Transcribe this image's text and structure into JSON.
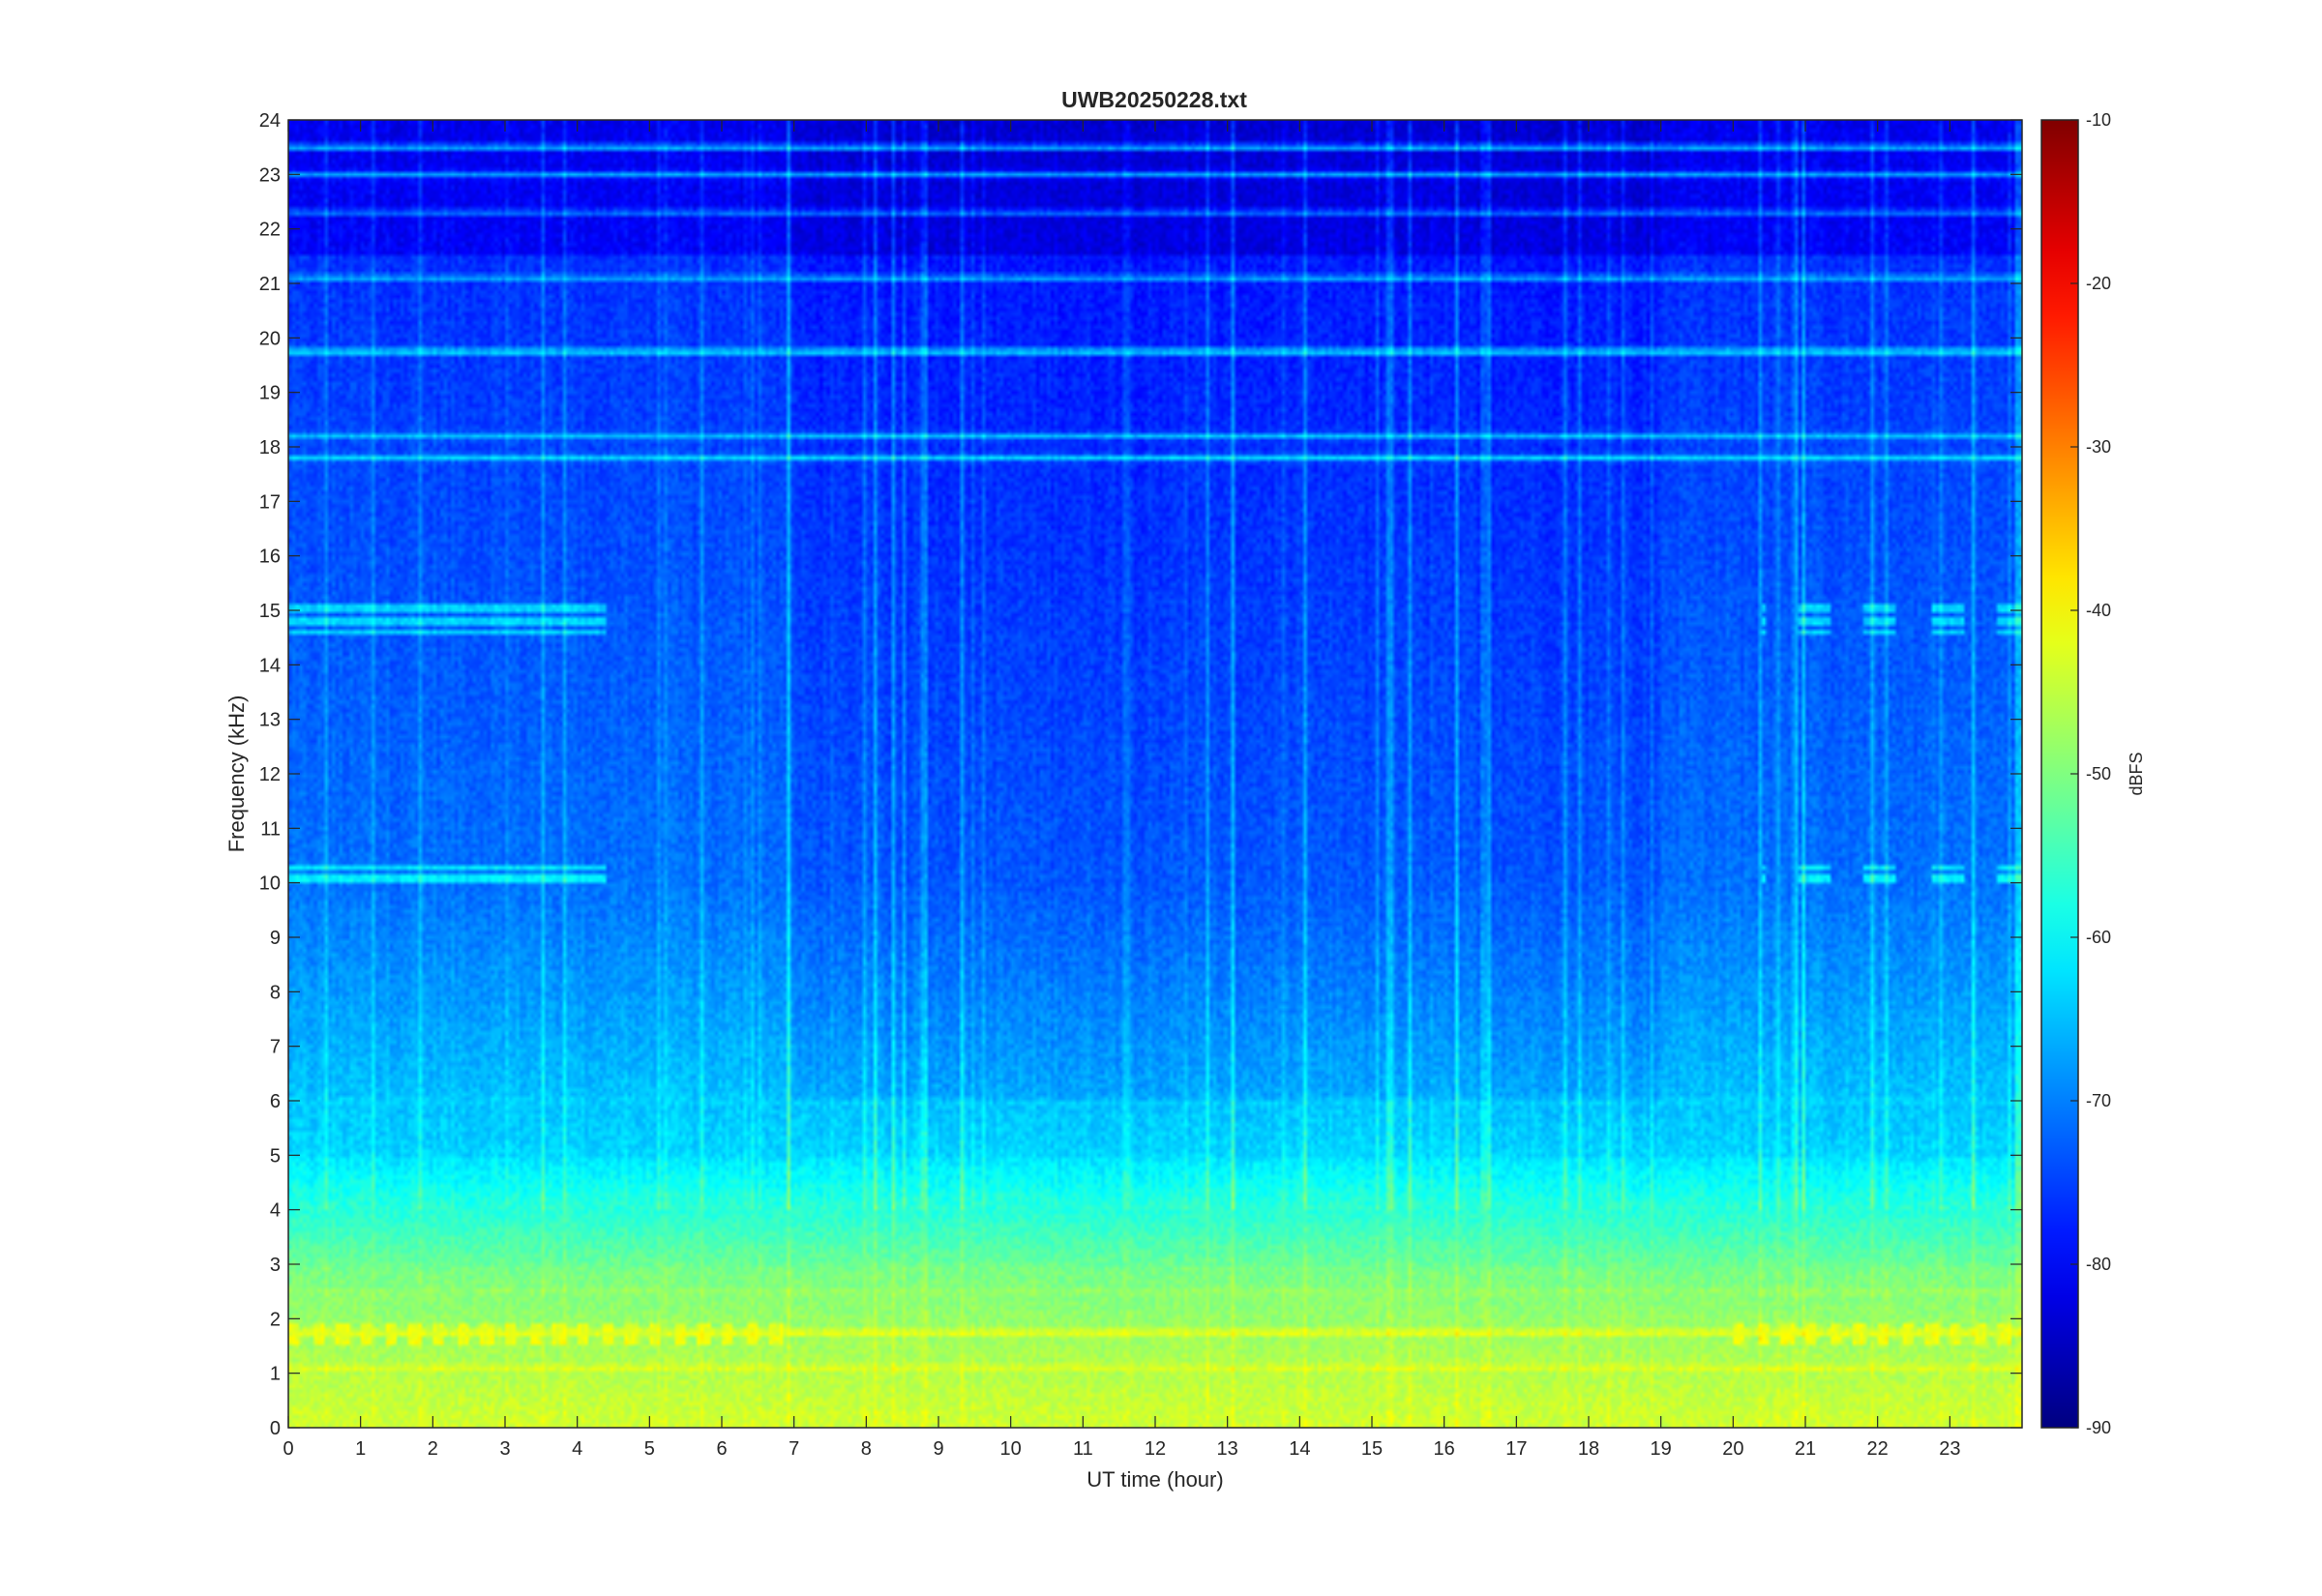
{
  "chart_data": {
    "type": "heatmap",
    "title": "UWB20250228.txt",
    "xlabel": "UT time (hour)",
    "ylabel": "Frequency (kHz)",
    "xlim": [
      0,
      24
    ],
    "ylim": [
      0,
      24
    ],
    "x_ticks": [
      "0",
      "1",
      "2",
      "3",
      "4",
      "5",
      "6",
      "7",
      "8",
      "9",
      "10",
      "11",
      "12",
      "13",
      "14",
      "15",
      "16",
      "17",
      "18",
      "19",
      "20",
      "21",
      "22",
      "23"
    ],
    "y_ticks": [
      "0",
      "1",
      "2",
      "3",
      "4",
      "5",
      "6",
      "7",
      "8",
      "9",
      "10",
      "11",
      "12",
      "13",
      "14",
      "15",
      "16",
      "17",
      "18",
      "19",
      "20",
      "21",
      "22",
      "23",
      "24"
    ],
    "colorbar": {
      "label": "dBFS",
      "range": [
        -90,
        -10
      ],
      "ticks": [
        "-10",
        "-20",
        "-30",
        "-40",
        "-50",
        "-60",
        "-70",
        "-80",
        "-90"
      ],
      "colormap": "jet"
    },
    "grid": false,
    "bands": [
      {
        "f_kHz": 19.75,
        "level_dBFS": -60
      },
      {
        "f_kHz": 18.2,
        "level_dBFS": -66
      },
      {
        "f_kHz": 17.8,
        "level_dBFS": -64
      },
      {
        "f_kHz": 21.1,
        "level_dBFS": -66
      },
      {
        "f_kHz": 23.5,
        "level_dBFS": -64
      },
      {
        "f_kHz": 23.0,
        "level_dBFS": -68
      },
      {
        "f_kHz": 22.3,
        "level_dBFS": -70
      },
      {
        "f_kHz": 6.0,
        "level_dBFS": -64
      },
      {
        "f_kHz": 2.5,
        "level_dBFS": -48
      },
      {
        "f_kHz": 1.75,
        "level_dBFS": -40
      },
      {
        "f_kHz": 1.1,
        "level_dBFS": -42
      }
    ]
  }
}
